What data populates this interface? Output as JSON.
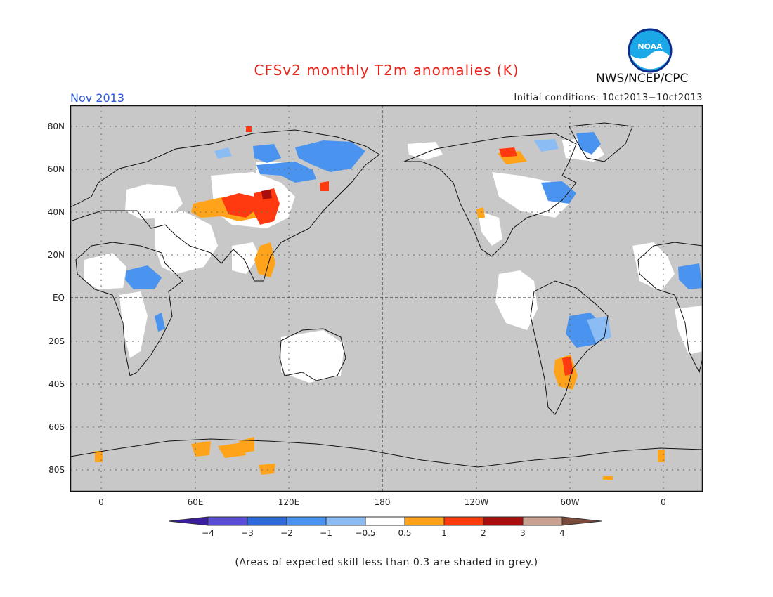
{
  "header": {
    "title": "CFSv2 monthly T2m anomalies (K)",
    "month": "Nov 2013",
    "initial_conditions": "Initial conditions: 10ct2013−10ct2013",
    "agency": "NWS/NCEP/CPC",
    "logo_text": "NOAA"
  },
  "map": {
    "projection": "cylindrical equidistant, Greenwich-centered",
    "background_color": "#c8c8c8",
    "lat_labels": [
      "80N",
      "60N",
      "40N",
      "20N",
      "EQ",
      "20S",
      "40S",
      "60S",
      "80S"
    ],
    "lon_labels": [
      "0",
      "60E",
      "120E",
      "180",
      "120W",
      "60W",
      "0"
    ],
    "grid": "dotted",
    "equator_and_dateline": "dashed"
  },
  "colorbar": {
    "labels": [
      "−4",
      "−3",
      "−2",
      "−1",
      "−0.5",
      "0.5",
      "1",
      "2",
      "3",
      "4"
    ],
    "colors": [
      "#3a1e9e",
      "#5a4fd4",
      "#2e6ad8",
      "#4a93ee",
      "#8bbcf4",
      "#ffffff",
      "#ffa41a",
      "#ff3a10",
      "#a80e0e",
      "#c9a292",
      "#7a4a3a"
    ]
  },
  "footnote": "(Areas of expected skill less than 0.3 are shaded in grey.)"
}
